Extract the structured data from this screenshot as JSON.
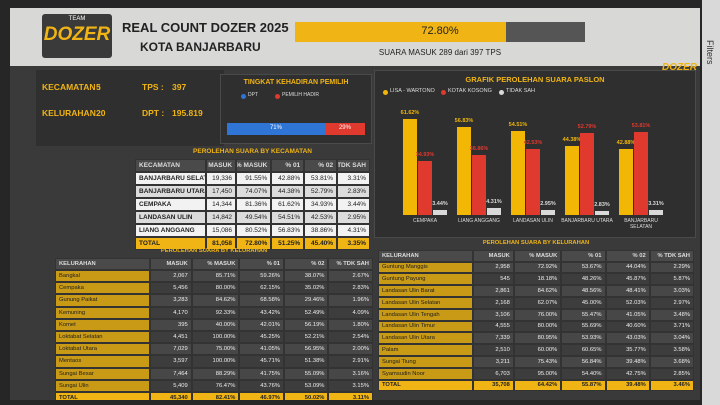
{
  "header": {
    "logo_top": "TEAM",
    "logo": "DOZER",
    "title": "REAL COUNT DOZER 2025",
    "subtitle": "KOTA BANJARBARU"
  },
  "progress": {
    "value": 72.8,
    "label": "72.80%",
    "caption": "SUARA MASUK 289 dari 397 TPS"
  },
  "corner_logo": "DOZER",
  "kpis": [
    {
      "label": "KECAMATAN :",
      "value": "5"
    },
    {
      "label": "TPS :",
      "value": "397"
    },
    {
      "label": "KELURAHAN : ",
      "value": "20"
    },
    {
      "label": "DPT :",
      "value": "195.819"
    }
  ],
  "attendance": {
    "title": "TINGKAT KEHADIRAN PEMILIH",
    "legend": [
      "DPT",
      "PEMILIH HADIR"
    ],
    "colors": [
      "#2e75d6",
      "#e0392d"
    ],
    "values": [
      71,
      29
    ],
    "value_labels": [
      "71%",
      "29%"
    ]
  },
  "chart_data": {
    "type": "bar",
    "title": "GRAFIK PEROLEHAN SUARA PASLON",
    "categories": [
      "CEMPAKA",
      "LIANG ANGGANG",
      "LANDASAN ULIN",
      "BANJARBARU UTARA",
      "BANJARBARU SELATAN"
    ],
    "series": [
      {
        "name": "LISA - WARTONO",
        "color": "#f2b705",
        "values": [
          61.62,
          56.83,
          54.51,
          44.38,
          42.88
        ],
        "value_labels": [
          "61.62%",
          "56.83%",
          "54.51%",
          "44.38%",
          "42.88%"
        ]
      },
      {
        "name": "KOTAK KOSONG",
        "color": "#e0392d",
        "values": [
          34.93,
          38.86,
          42.53,
          52.79,
          53.81
        ],
        "value_labels": [
          "34.93%",
          "38.86%",
          "42.53%",
          "52.79%",
          "53.81%"
        ]
      },
      {
        "name": "TIDAK SAH",
        "color": "#d9d9d9",
        "values": [
          3.44,
          4.31,
          2.95,
          2.83,
          3.31
        ],
        "value_labels": [
          "3.44%",
          "4.31%",
          "2.95%",
          "2.83%",
          "3.31%"
        ]
      }
    ]
  },
  "tables": [
    {
      "title": "PEROLEHAN SUARA BY KECAMATAN",
      "columns": [
        "KECAMATAN",
        "MASUK",
        "% MASUK",
        "% 01",
        "% 02",
        "% TDK SAH"
      ],
      "rows": [
        [
          "BANJARBARU SELATAN",
          "19,336",
          "91.55%",
          "42.88%",
          "53.81%",
          "3.31%"
        ],
        [
          "BANJARBARU UTARA",
          "17,450",
          "74.07%",
          "44.38%",
          "52.79%",
          "2.83%"
        ],
        [
          "CEMPAKA",
          "14,344",
          "81.36%",
          "61.62%",
          "34.93%",
          "3.44%"
        ],
        [
          "LANDASAN ULIN",
          "14,842",
          "49.54%",
          "54.51%",
          "42.53%",
          "2.95%"
        ],
        [
          "LIANG ANGGANG",
          "15,086",
          "80.52%",
          "56.83%",
          "38.86%",
          "4.31%"
        ],
        [
          "TOTAL",
          "81,058",
          "72.80%",
          "51.25%",
          "45.40%",
          "3.35%"
        ]
      ]
    },
    {
      "title": "PEROLEHAN SUARA BY KELURAHAN",
      "columns": [
        "KELURAHAN",
        "MASUK",
        "% MASUK",
        "% 01",
        "% 02",
        "% TDK SAH"
      ],
      "rows": [
        [
          "Bangkal",
          "2,067",
          "85.71%",
          "59.26%",
          "38.07%",
          "2.67%"
        ],
        [
          "Cempaka",
          "5,456",
          "80.00%",
          "62.15%",
          "35.02%",
          "2.83%"
        ],
        [
          "Gunung Paikat",
          "3,283",
          "84.62%",
          "68.58%",
          "29.46%",
          "1.96%"
        ],
        [
          "Kemuning",
          "4,170",
          "92.33%",
          "43.42%",
          "52.49%",
          "4.09%"
        ],
        [
          "Komet",
          "395",
          "40.00%",
          "42.01%",
          "56.19%",
          "1.80%"
        ],
        [
          "Loktabat Selatan",
          "4,451",
          "100.00%",
          "45.25%",
          "52.21%",
          "2.54%"
        ],
        [
          "Loktabat Utara",
          "7,029",
          "75.00%",
          "41.05%",
          "56.95%",
          "2.00%"
        ],
        [
          "Mentaos",
          "3,597",
          "100.00%",
          "45.71%",
          "51.38%",
          "2.91%"
        ],
        [
          "Sungai Besar",
          "7,464",
          "88.29%",
          "41.75%",
          "55.09%",
          "3.16%"
        ],
        [
          "Sungai Ulin",
          "5,409",
          "76.47%",
          "43.76%",
          "53.09%",
          "3.15%"
        ],
        [
          "TOTAL",
          "45,340",
          "82.41%",
          "46.97%",
          "50.02%",
          "3.11%"
        ]
      ]
    },
    {
      "title": "PEROLEHAN SUARA BY KELURAHAN",
      "columns": [
        "KELURAHAN",
        "MASUK",
        "% MASUK",
        "% 01",
        "% 02",
        "% TDK SAH"
      ],
      "rows": [
        [
          "Guntung Manggis",
          "2,958",
          "72.92%",
          "53.67%",
          "44.04%",
          "2.29%"
        ],
        [
          "Guntung Payung",
          "545",
          "18.18%",
          "48.26%",
          "45.87%",
          "5.87%"
        ],
        [
          "Landasan Ulin Barat",
          "2,861",
          "84.62%",
          "48.56%",
          "48.41%",
          "3.03%"
        ],
        [
          "Landasan Ulin Selatan",
          "2,168",
          "62.07%",
          "45.00%",
          "52.03%",
          "2.97%"
        ],
        [
          "Landasan Ulin Tengah",
          "3,106",
          "76.00%",
          "55.47%",
          "41.05%",
          "3.48%"
        ],
        [
          "Landasan Ulin Timur",
          "4,555",
          "80.00%",
          "55.69%",
          "40.60%",
          "3.71%"
        ],
        [
          "Landasan Ulin Utara",
          "7,339",
          "80.95%",
          "53.93%",
          "43.03%",
          "3.04%"
        ],
        [
          "Palam",
          "2,510",
          "60.00%",
          "60.65%",
          "35.77%",
          "3.58%"
        ],
        [
          "Sungai Tiung",
          "3,211",
          "75.43%",
          "56.84%",
          "39.48%",
          "3.68%"
        ],
        [
          "Syamsudin Noor",
          "6,703",
          "95.00%",
          "54.40%",
          "42.75%",
          "2.85%"
        ],
        [
          "TOTAL",
          "35,708",
          "64.42%",
          "55.87%",
          "39.48%",
          "3.46%"
        ]
      ]
    }
  ],
  "sidebar": "Filters"
}
